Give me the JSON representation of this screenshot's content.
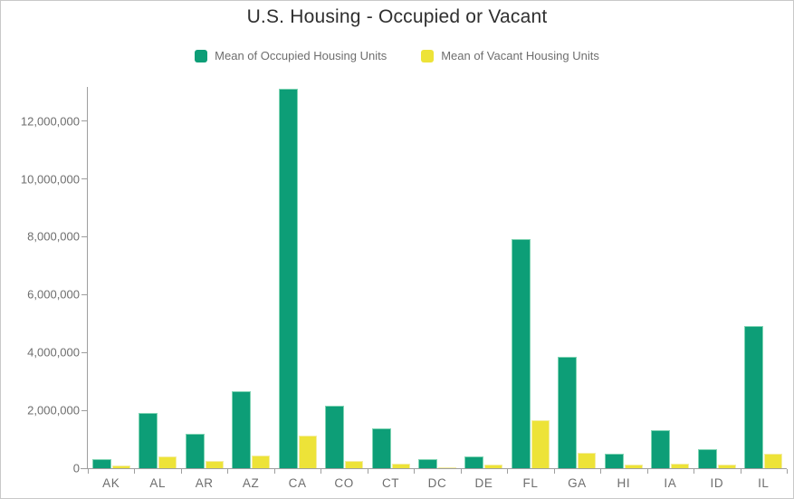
{
  "title": "U.S. Housing - Occupied or Vacant",
  "legend": [
    {
      "label": "Mean of Occupied Housing Units",
      "color": "#0d9e77"
    },
    {
      "label": "Mean of Vacant Housing Units",
      "color": "#ede338"
    }
  ],
  "chart_data": {
    "type": "bar",
    "title": "U.S. Housing - Occupied or Vacant",
    "categories": [
      "AK",
      "AL",
      "AR",
      "AZ",
      "CA",
      "CO",
      "CT",
      "DC",
      "DE",
      "FL",
      "GA",
      "HI",
      "IA",
      "ID",
      "IL"
    ],
    "series": [
      {
        "name": "Mean of Occupied Housing Units",
        "color": "#0d9e77",
        "values": [
          300000,
          1920000,
          1190000,
          2660000,
          13120000,
          2150000,
          1390000,
          320000,
          400000,
          7930000,
          3840000,
          490000,
          1300000,
          670000,
          4900000
        ]
      },
      {
        "name": "Mean of Vacant Housing Units",
        "color": "#ede338",
        "values": [
          90000,
          400000,
          240000,
          430000,
          1130000,
          240000,
          165000,
          45000,
          135000,
          1650000,
          520000,
          125000,
          165000,
          115000,
          500000
        ]
      }
    ],
    "xlabel": "",
    "ylabel": "",
    "ylim": [
      0,
      13180000
    ],
    "yticks": [
      0,
      2000000,
      4000000,
      6000000,
      8000000,
      10000000,
      12000000
    ],
    "grid": false,
    "legend_position": "top"
  }
}
